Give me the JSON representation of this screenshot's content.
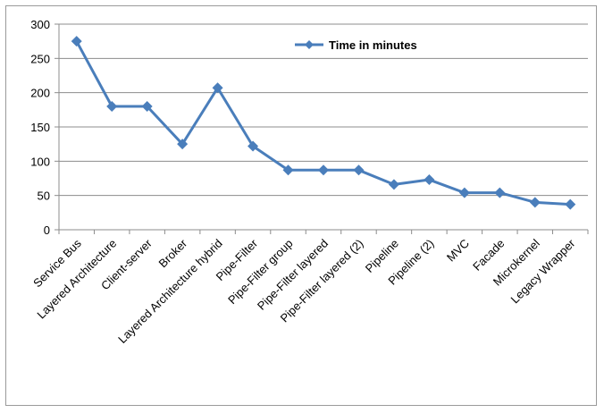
{
  "chart_data": {
    "type": "line",
    "title": "",
    "xlabel": "",
    "ylabel": "",
    "ylim": [
      0,
      300
    ],
    "yticks": [
      0,
      50,
      100,
      150,
      200,
      250,
      300
    ],
    "grid": true,
    "legend_position": "top-right",
    "line_color": "#4a7ebb",
    "categories": [
      "Service Bus",
      "Layered Architecture",
      "Client-server",
      "Broker",
      "Layered Architecture hybrid",
      "Pipe-Filter",
      "Pipe-Filter group",
      "Pipe-Filter layered",
      "Pipe-Filter layered (2)",
      "Pipeline",
      "Pipeline (2)",
      "MVC",
      "Facade",
      "Microkernel",
      "Legacy Wrapper"
    ],
    "series": [
      {
        "name": "Time in minutes",
        "values": [
          275,
          180,
          180,
          125,
          207,
          122,
          87,
          87,
          87,
          66,
          73,
          54,
          54,
          40,
          37
        ]
      }
    ]
  }
}
